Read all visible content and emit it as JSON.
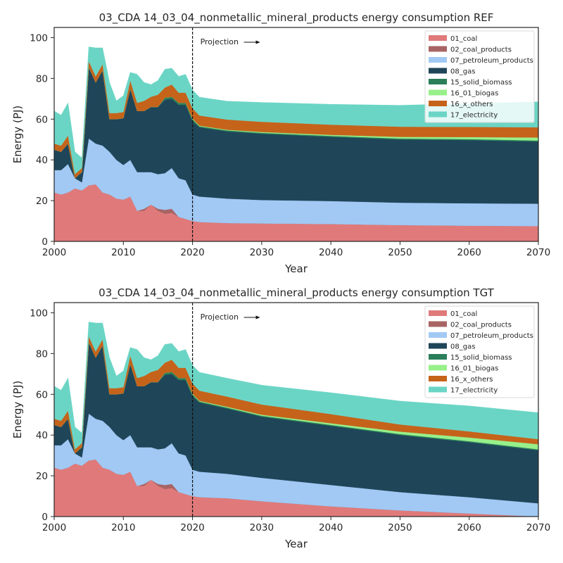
{
  "chart_data": [
    {
      "type": "area",
      "stacked": true,
      "title": "03_CDA 14_03_04_nonmetallic_mineral_products energy consumption REF",
      "xlabel": "Year",
      "ylabel": "Energy (PJ)",
      "xlim": [
        2000,
        2070
      ],
      "ylim": [
        0,
        105
      ],
      "xticks": [
        "2000",
        "2010",
        "2020",
        "2030",
        "2040",
        "2050",
        "2060",
        "2070"
      ],
      "yticks": [
        "0",
        "20",
        "40",
        "60",
        "80",
        "100"
      ],
      "legend_position": "top-right",
      "annotation": {
        "text": "Projection",
        "x": 2020
      },
      "x": [
        2000,
        2001,
        2002,
        2003,
        2004,
        2005,
        2006,
        2007,
        2008,
        2009,
        2010,
        2011,
        2012,
        2013,
        2014,
        2015,
        2016,
        2017,
        2018,
        2019,
        2020,
        2021,
        2025,
        2030,
        2040,
        2050,
        2060,
        2070
      ],
      "series": [
        {
          "name": "01_coal",
          "color": "#e07a7a",
          "values": [
            24,
            23,
            24,
            26,
            25,
            27.5,
            28,
            24,
            23,
            21,
            20.5,
            22,
            15,
            15,
            18,
            15,
            13.5,
            14,
            12,
            11,
            10,
            9.5,
            9,
            8.8,
            8.5,
            8,
            7.7,
            7.5
          ]
        },
        {
          "name": "02_coal_products",
          "color": "#a86464",
          "values": [
            0,
            0,
            0,
            0,
            0,
            0,
            0,
            0,
            0,
            0,
            0,
            0,
            0,
            1,
            0,
            1,
            2,
            2,
            0,
            0,
            0,
            0,
            0,
            0,
            0,
            0,
            0,
            0
          ]
        },
        {
          "name": "07_petroleum_products",
          "color": "#a1c9f4",
          "values": [
            11,
            12,
            14,
            5,
            4,
            23,
            20,
            23,
            21,
            19,
            17,
            18,
            19,
            18,
            16,
            17,
            18,
            20,
            19,
            19,
            13,
            12.5,
            12,
            11.5,
            11.3,
            11,
            11,
            11
          ]
        },
        {
          "name": "08_gas",
          "color": "#1f4559",
          "values": [
            10,
            9,
            10,
            0,
            5,
            35,
            30,
            37,
            16,
            20,
            23,
            35,
            30,
            30,
            32,
            33,
            36,
            34,
            36,
            37,
            36,
            34,
            33,
            32.5,
            31.5,
            31,
            31,
            30.5
          ]
        },
        {
          "name": "15_solid_biomass",
          "color": "#2a7f5a",
          "values": [
            0,
            0,
            0,
            0,
            0,
            0,
            0,
            0,
            0,
            0,
            0,
            0,
            0,
            0,
            0,
            0,
            1,
            1,
            1,
            1,
            1,
            0.5,
            0.5,
            0.5,
            0.5,
            0.5,
            0.5,
            0.5
          ]
        },
        {
          "name": "16_01_biogas",
          "color": "#98f08a",
          "values": [
            0,
            0,
            0,
            0,
            0,
            0,
            0,
            0,
            0,
            0,
            0,
            0,
            0,
            0,
            0,
            0,
            0,
            0,
            0,
            0,
            0.3,
            0.3,
            0.3,
            0.4,
            0.5,
            0.8,
            1,
            1.5
          ]
        },
        {
          "name": "16_x_others",
          "color": "#c5631b",
          "values": [
            3,
            3,
            4,
            2,
            2,
            3,
            3,
            3,
            3,
            3,
            3,
            4,
            4,
            5,
            5,
            6,
            5,
            6,
            5,
            5,
            5,
            5,
            5,
            5,
            5,
            5,
            5,
            5
          ]
        },
        {
          "name": "17_electricity",
          "color": "#6bd5c5",
          "values": [
            16,
            15,
            16,
            11,
            5,
            7,
            14,
            8,
            15,
            6,
            8,
            4,
            14,
            9,
            6,
            7,
            9,
            8,
            8,
            9,
            9,
            9,
            9,
            9.5,
            10,
            10.5,
            11.5,
            12.5
          ]
        }
      ]
    },
    {
      "type": "area",
      "stacked": true,
      "title": "03_CDA 14_03_04_nonmetallic_mineral_products energy consumption TGT",
      "xlabel": "Year",
      "ylabel": "Energy (PJ)",
      "xlim": [
        2000,
        2070
      ],
      "ylim": [
        0,
        105
      ],
      "xticks": [
        "2000",
        "2010",
        "2020",
        "2030",
        "2040",
        "2050",
        "2060",
        "2070"
      ],
      "yticks": [
        "0",
        "20",
        "40",
        "60",
        "80",
        "100"
      ],
      "legend_position": "top-right",
      "annotation": {
        "text": "Projection",
        "x": 2020
      },
      "x": [
        2000,
        2001,
        2002,
        2003,
        2004,
        2005,
        2006,
        2007,
        2008,
        2009,
        2010,
        2011,
        2012,
        2013,
        2014,
        2015,
        2016,
        2017,
        2018,
        2019,
        2020,
        2021,
        2025,
        2030,
        2040,
        2050,
        2060,
        2070
      ],
      "series": [
        {
          "name": "01_coal",
          "color": "#e07a7a",
          "values": [
            24,
            23,
            24,
            26,
            25,
            27.5,
            28,
            24,
            23,
            21,
            20.5,
            22,
            15,
            15,
            18,
            15,
            13.5,
            14,
            12,
            11,
            10,
            9.5,
            9,
            7.5,
            5,
            3,
            1.5,
            0
          ]
        },
        {
          "name": "02_coal_products",
          "color": "#a86464",
          "values": [
            0,
            0,
            0,
            0,
            0,
            0,
            0,
            0,
            0,
            0,
            0,
            0,
            0,
            1,
            0,
            1,
            2,
            2,
            0,
            0,
            0,
            0,
            0,
            0,
            0,
            0,
            0,
            0
          ]
        },
        {
          "name": "07_petroleum_products",
          "color": "#a1c9f4",
          "values": [
            11,
            12,
            14,
            5,
            4,
            23,
            20,
            23,
            21,
            19,
            17,
            18,
            19,
            18,
            16,
            17,
            18,
            20,
            19,
            19,
            13,
            12.5,
            12,
            11.5,
            10.5,
            9,
            8,
            6.5
          ]
        },
        {
          "name": "08_gas",
          "color": "#1f4559",
          "values": [
            10,
            9,
            10,
            0,
            5,
            35,
            30,
            37,
            16,
            20,
            23,
            35,
            30,
            30,
            32,
            33,
            36,
            34,
            36,
            37,
            36,
            34,
            32,
            30,
            29,
            28,
            27,
            26
          ]
        },
        {
          "name": "15_solid_biomass",
          "color": "#2a7f5a",
          "values": [
            0,
            0,
            0,
            0,
            0,
            0,
            0,
            0,
            0,
            0,
            0,
            0,
            0,
            0,
            0,
            0,
            1,
            1,
            1,
            1,
            1,
            0.5,
            0.5,
            0.5,
            0.5,
            0.5,
            0.5,
            0.5
          ]
        },
        {
          "name": "16_01_biogas",
          "color": "#98f08a",
          "values": [
            0,
            0,
            0,
            0,
            0,
            0,
            0,
            0,
            0,
            0,
            0,
            0,
            0,
            0,
            0,
            0,
            0,
            0,
            0,
            0,
            0.3,
            0.3,
            0.4,
            0.5,
            0.8,
            1.2,
            1.8,
            2.5
          ]
        },
        {
          "name": "16_x_others",
          "color": "#c5631b",
          "values": [
            3,
            3,
            4,
            2,
            2,
            3,
            3,
            3,
            3,
            3,
            3,
            4,
            4,
            5,
            5,
            6,
            5,
            6,
            5,
            5,
            5,
            5,
            5,
            5,
            4.5,
            3.5,
            3,
            2.5
          ]
        },
        {
          "name": "17_electricity",
          "color": "#6bd5c5",
          "values": [
            16,
            15,
            16,
            11,
            5,
            7,
            14,
            8,
            15,
            6,
            8,
            4,
            14,
            9,
            6,
            7,
            9,
            8,
            8,
            9,
            9,
            9,
            9,
            9.5,
            10.5,
            11.5,
            12.5,
            13
          ]
        }
      ]
    }
  ]
}
